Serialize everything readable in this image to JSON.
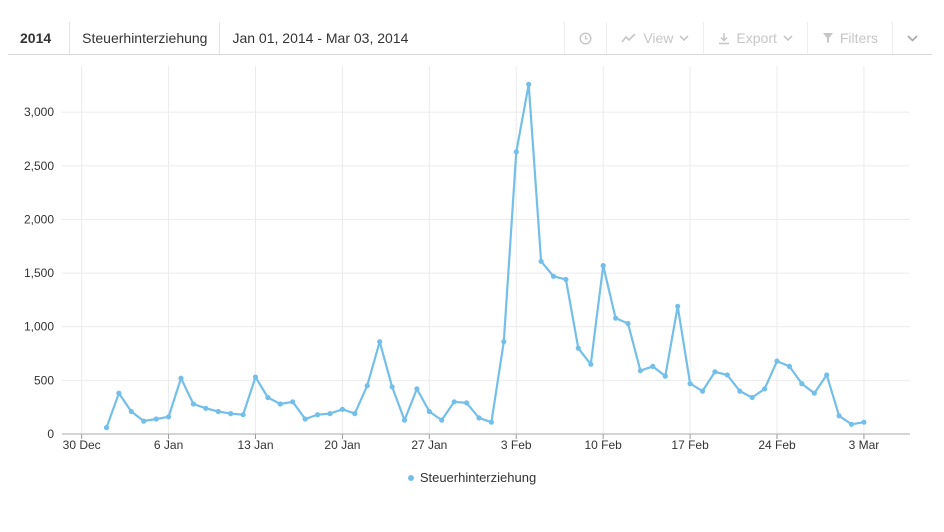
{
  "toolbar": {
    "year": "2014",
    "term": "Steuerhinterziehung",
    "date_range": "Jan 01, 2014 - Mar 03, 2014",
    "view_label": "View",
    "export_label": "Export",
    "filters_label": "Filters",
    "icons": [
      "clock-icon",
      "trend-line-icon",
      "download-icon",
      "filter-icon",
      "chevron-down-icon"
    ]
  },
  "colors": {
    "series": "#74bfe9",
    "grid": "#ebebeb",
    "axis": "#333333",
    "toolbar_disabled": "#c6c6c6"
  },
  "chart_data": {
    "type": "line",
    "title": "",
    "xlabel": "",
    "ylabel": "",
    "x_start": "2014-01-01",
    "x_tick_labels": [
      "30 Dec",
      "6 Jan",
      "13 Jan",
      "20 Jan",
      "27 Jan",
      "3 Feb",
      "10 Feb",
      "17 Feb",
      "24 Feb",
      "3 Mar"
    ],
    "x_tick_dates": [
      "2013-12-30",
      "2014-01-06",
      "2014-01-13",
      "2014-01-20",
      "2014-01-27",
      "2014-02-03",
      "2014-02-10",
      "2014-02-17",
      "2014-02-24",
      "2014-03-03"
    ],
    "ylim": [
      0,
      3300
    ],
    "y_ticks": [
      0,
      500,
      1000,
      1500,
      2000,
      2500,
      3000
    ],
    "y_tick_labels": [
      "0",
      "500",
      "1,000",
      "1,500",
      "2,000",
      "2,500",
      "3,000"
    ],
    "grid": true,
    "legend": "bottom-center",
    "series": [
      {
        "name": "Steuerhinterziehung",
        "values": [
          60,
          380,
          210,
          120,
          140,
          160,
          520,
          280,
          240,
          210,
          190,
          180,
          530,
          340,
          280,
          300,
          140,
          180,
          190,
          230,
          190,
          450,
          860,
          440,
          130,
          420,
          210,
          130,
          300,
          290,
          150,
          110,
          860,
          2630,
          3260,
          1610,
          1470,
          1440,
          800,
          650,
          1570,
          1080,
          1030,
          590,
          630,
          540,
          1190,
          470,
          400,
          580,
          550,
          400,
          340,
          420,
          680,
          630,
          470,
          380,
          550,
          170,
          90,
          110
        ]
      }
    ]
  }
}
